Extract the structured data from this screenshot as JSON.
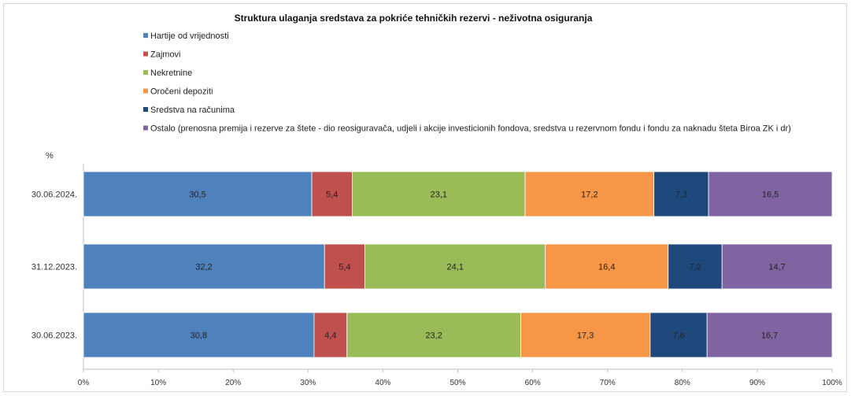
{
  "chart_data": {
    "type": "bar",
    "orientation": "horizontal",
    "stacked": true,
    "title": "Struktura ulaganja sredstava za pokriće tehničkih rezervi  - neživotna osiguranja",
    "unit_label": "%",
    "categories": [
      "30.06.2024.",
      "31.12.2023.",
      "30.06.2023."
    ],
    "series": [
      {
        "name": "Hartije od vrijednosti",
        "color": "#4f81bd",
        "values": [
          30.5,
          32.2,
          30.8
        ]
      },
      {
        "name": "Zajmovi",
        "color": "#c0504d",
        "values": [
          5.4,
          5.4,
          4.4
        ]
      },
      {
        "name": "Nekretnine",
        "color": "#9bbb59",
        "values": [
          23.1,
          24.1,
          23.2
        ]
      },
      {
        "name": "Oročeni depoziti",
        "color": "#f79646",
        "values": [
          17.2,
          16.4,
          17.3
        ]
      },
      {
        "name": "Sredstva na računima",
        "color": "#1f497d",
        "values": [
          7.3,
          7.2,
          7.6
        ]
      },
      {
        "name": "Ostalo (prenosna premija i rezerve za štete - dio reosiguravača, udjeli i akcije investicionih fondova, sredstva u rezervnom fondu i fondu za naknadu šteta Biroa ZK i dr)",
        "color": "#8064a2",
        "values": [
          16.5,
          14.7,
          16.7
        ]
      }
    ],
    "value_labels": [
      [
        "30,5",
        "5,4",
        "23,1",
        "17,2",
        "7,3",
        "16,5"
      ],
      [
        "32,2",
        "5,4",
        "24,1",
        "16,4",
        "7,2",
        "14,7"
      ],
      [
        "30,8",
        "4,4",
        "23,2",
        "17,3",
        "7,6",
        "16,7"
      ]
    ],
    "x_ticks": [
      "0%",
      "10%",
      "20%",
      "30%",
      "40%",
      "50%",
      "60%",
      "70%",
      "80%",
      "90%",
      "100%"
    ],
    "xlim": [
      0,
      100
    ],
    "grid": false,
    "legend_position": "top-left"
  }
}
